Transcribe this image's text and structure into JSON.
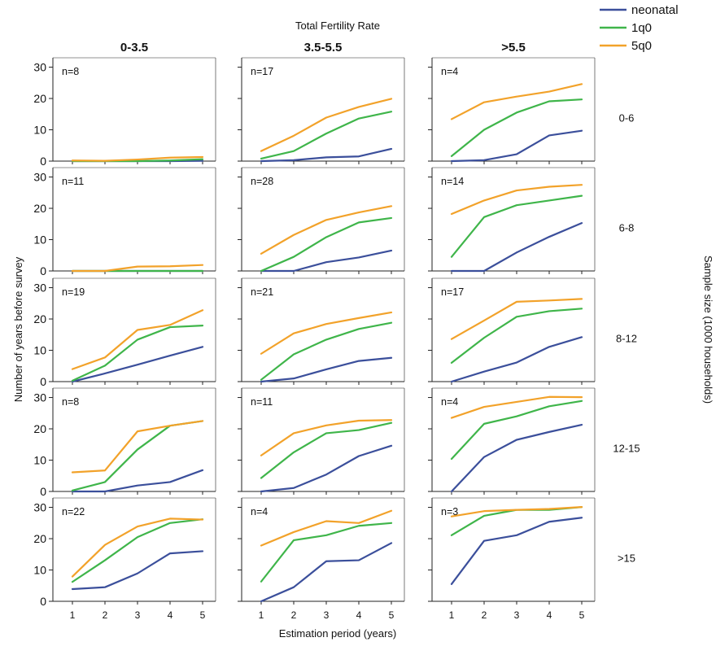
{
  "figure": {
    "top_title": "Total Fertility Rate",
    "x_title": "Estimation period (years)",
    "y_title": "Number of years before survey",
    "right_title": "Sample size (1000 households)"
  },
  "legend": [
    {
      "name": "neonatal",
      "color": "#3b4f9b"
    },
    {
      "name": "1q0",
      "color": "#3fb54a"
    },
    {
      "name": "5q0",
      "color": "#f2a22a"
    }
  ],
  "chart_data": {
    "type": "line",
    "x": [
      1,
      2,
      3,
      4,
      5
    ],
    "xlim": [
      0.4,
      5.4
    ],
    "ylim": [
      0,
      33
    ],
    "x_ticks": [
      "1",
      "2",
      "3",
      "4",
      "5"
    ],
    "y_ticks": [
      "0",
      "10",
      "20",
      "30"
    ],
    "column_labels": [
      "0-3.5",
      "3.5-5.5",
      ">5.5"
    ],
    "row_labels": [
      "0-6",
      "6-8",
      "8-12",
      "12-15",
      ">15"
    ],
    "panels": [
      {
        "row": 0,
        "col": 0,
        "n": "n=8",
        "series": [
          {
            "name": "neonatal",
            "values": [
              0,
              0,
              0,
              0,
              0.1
            ]
          },
          {
            "name": "1q0",
            "values": [
              0,
              0,
              0,
              0.2,
              0.6
            ]
          },
          {
            "name": "5q0",
            "values": [
              0.2,
              0.1,
              0.5,
              1.1,
              1.3
            ]
          }
        ]
      },
      {
        "row": 0,
        "col": 1,
        "n": "n=17",
        "series": [
          {
            "name": "neonatal",
            "values": [
              0,
              0.3,
              1.2,
              1.5,
              3.9
            ]
          },
          {
            "name": "1q0",
            "values": [
              0.8,
              3.2,
              8.8,
              13.6,
              15.8
            ]
          },
          {
            "name": "5q0",
            "values": [
              3.2,
              8.1,
              13.9,
              17.3,
              19.9
            ]
          }
        ]
      },
      {
        "row": 0,
        "col": 2,
        "n": "n=4",
        "series": [
          {
            "name": "neonatal",
            "values": [
              0,
              0.3,
              2.2,
              8.2,
              9.7
            ]
          },
          {
            "name": "1q0",
            "values": [
              1.6,
              10.0,
              15.5,
              19.1,
              19.7
            ]
          },
          {
            "name": "5q0",
            "values": [
              13.4,
              18.8,
              20.6,
              22.2,
              24.6
            ]
          }
        ]
      },
      {
        "row": 1,
        "col": 0,
        "n": "n=11",
        "series": [
          {
            "name": "neonatal",
            "values": [
              0,
              0,
              0,
              0,
              0
            ]
          },
          {
            "name": "1q0",
            "values": [
              0,
              0,
              0,
              0,
              0
            ]
          },
          {
            "name": "5q0",
            "values": [
              0,
              0,
              1.4,
              1.5,
              1.9
            ]
          }
        ]
      },
      {
        "row": 1,
        "col": 1,
        "n": "n=28",
        "series": [
          {
            "name": "neonatal",
            "values": [
              0,
              0,
              2.8,
              4.3,
              6.5
            ]
          },
          {
            "name": "1q0",
            "values": [
              0,
              4.5,
              10.8,
              15.5,
              16.9
            ]
          },
          {
            "name": "5q0",
            "values": [
              5.5,
              11.5,
              16.3,
              18.7,
              20.7
            ]
          }
        ]
      },
      {
        "row": 1,
        "col": 2,
        "n": "n=14",
        "series": [
          {
            "name": "neonatal",
            "values": [
              0,
              0,
              5.9,
              10.9,
              15.3
            ]
          },
          {
            "name": "1q0",
            "values": [
              4.5,
              17.2,
              21.0,
              22.5,
              24.0
            ]
          },
          {
            "name": "5q0",
            "values": [
              18.2,
              22.5,
              25.7,
              26.9,
              27.5
            ]
          }
        ]
      },
      {
        "row": 2,
        "col": 0,
        "n": "n=19",
        "series": [
          {
            "name": "neonatal",
            "values": [
              0,
              2.6,
              5.4,
              8.3,
              11.1
            ]
          },
          {
            "name": "1q0",
            "values": [
              0.3,
              5.1,
              13.4,
              17.4,
              17.9
            ]
          },
          {
            "name": "5q0",
            "values": [
              4.0,
              7.7,
              16.5,
              18.1,
              22.8
            ]
          }
        ]
      },
      {
        "row": 2,
        "col": 1,
        "n": "n=21",
        "series": [
          {
            "name": "neonatal",
            "values": [
              0,
              1.0,
              3.9,
              6.6,
              7.6
            ]
          },
          {
            "name": "1q0",
            "values": [
              0.6,
              8.7,
              13.4,
              16.8,
              18.8
            ]
          },
          {
            "name": "5q0",
            "values": [
              8.9,
              15.4,
              18.4,
              20.3,
              22.1
            ]
          }
        ]
      },
      {
        "row": 2,
        "col": 2,
        "n": "n=17",
        "series": [
          {
            "name": "neonatal",
            "values": [
              0,
              3.2,
              6.1,
              11.1,
              14.2
            ]
          },
          {
            "name": "1q0",
            "values": [
              6.0,
              14.0,
              20.7,
              22.5,
              23.3
            ]
          },
          {
            "name": "5q0",
            "values": [
              13.6,
              19.5,
              25.5,
              25.9,
              26.4
            ]
          }
        ]
      },
      {
        "row": 3,
        "col": 0,
        "n": "n=8",
        "series": [
          {
            "name": "neonatal",
            "values": [
              0,
              0,
              1.9,
              3.0,
              6.8
            ]
          },
          {
            "name": "1q0",
            "values": [
              0.3,
              3.0,
              13.4,
              21.0,
              22.5
            ]
          },
          {
            "name": "5q0",
            "values": [
              6.1,
              6.7,
              19.2,
              21.0,
              22.5
            ]
          }
        ]
      },
      {
        "row": 3,
        "col": 1,
        "n": "n=11",
        "series": [
          {
            "name": "neonatal",
            "values": [
              0,
              1.1,
              5.4,
              11.3,
              14.6
            ]
          },
          {
            "name": "1q0",
            "values": [
              4.3,
              12.5,
              18.6,
              19.6,
              21.9
            ]
          },
          {
            "name": "5q0",
            "values": [
              11.5,
              18.6,
              21.1,
              22.6,
              22.8
            ]
          }
        ]
      },
      {
        "row": 3,
        "col": 2,
        "n": "n=4",
        "series": [
          {
            "name": "neonatal",
            "values": [
              0,
              11.0,
              16.5,
              19.0,
              21.3
            ]
          },
          {
            "name": "1q0",
            "values": [
              10.4,
              21.6,
              24.0,
              27.2,
              28.9
            ]
          },
          {
            "name": "5q0",
            "values": [
              23.5,
              27.0,
              28.6,
              30.2,
              30.1
            ]
          }
        ]
      },
      {
        "row": 4,
        "col": 0,
        "n": "n=22",
        "series": [
          {
            "name": "neonatal",
            "values": [
              3.9,
              4.5,
              8.9,
              15.3,
              16.0
            ]
          },
          {
            "name": "1q0",
            "values": [
              6.2,
              13.1,
              20.5,
              25.0,
              26.2
            ]
          },
          {
            "name": "5q0",
            "values": [
              7.9,
              18.0,
              23.9,
              26.4,
              26.1
            ]
          }
        ]
      },
      {
        "row": 4,
        "col": 1,
        "n": "n=4",
        "series": [
          {
            "name": "neonatal",
            "values": [
              0,
              4.5,
              12.8,
              13.1,
              18.6
            ]
          },
          {
            "name": "1q0",
            "values": [
              6.3,
              19.5,
              21.1,
              24.1,
              25.0
            ]
          },
          {
            "name": "5q0",
            "values": [
              17.8,
              22.1,
              25.6,
              25.0,
              28.9
            ]
          }
        ]
      },
      {
        "row": 4,
        "col": 2,
        "n": "n=3",
        "series": [
          {
            "name": "neonatal",
            "values": [
              5.5,
              19.3,
              21.1,
              25.4,
              26.7
            ]
          },
          {
            "name": "1q0",
            "values": [
              21.1,
              27.3,
              29.2,
              29.2,
              30.1
            ]
          },
          {
            "name": "5q0",
            "values": [
              27.1,
              28.8,
              29.2,
              29.5,
              30.1
            ]
          }
        ]
      }
    ]
  }
}
